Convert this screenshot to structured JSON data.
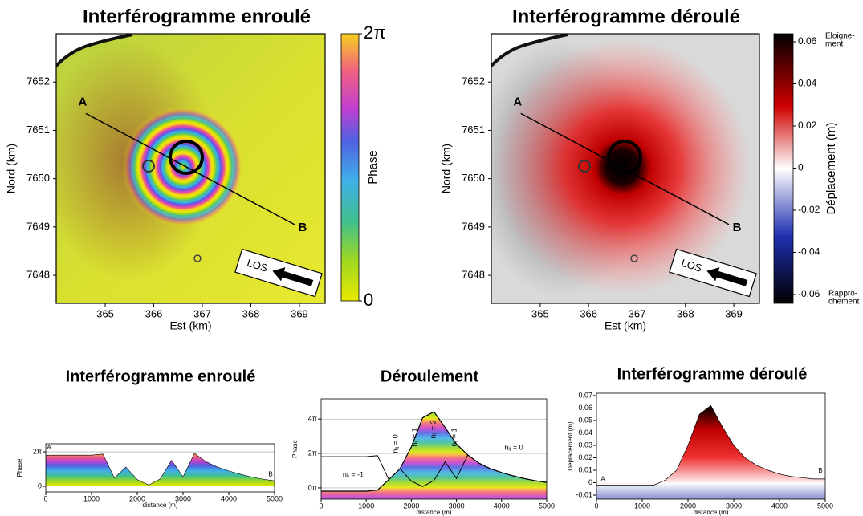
{
  "chart_data": [
    {
      "type": "map",
      "title": "Interférogramme enroulé",
      "xlabel": "Est (km)",
      "ylabel": "Nord (km)",
      "xlim": [
        363.99,
        369.53
      ],
      "ylim": [
        7647.42,
        7653.0
      ],
      "xticks": [
        365,
        366,
        367,
        368,
        369
      ],
      "yticks": [
        7648,
        7649,
        7650,
        7651,
        7652
      ],
      "profile": {
        "labels": [
          "A",
          "B"
        ],
        "x": [
          364.6,
          368.9
        ],
        "y": [
          7651.35,
          7649.05
        ]
      },
      "los": "LOS",
      "colorbar": {
        "label": "Phase",
        "ylim": [
          0,
          6.2832
        ],
        "yticks": [
          0,
          {
            "value": 6.2832,
            "label": "2π"
          }
        ]
      }
    },
    {
      "type": "map",
      "title": "Interférogramme déroulé",
      "xlabel": "Est (km)",
      "ylabel": "Nord (km)",
      "xlim": [
        363.99,
        369.53
      ],
      "ylim": [
        7647.42,
        7653.0
      ],
      "xticks": [
        365,
        366,
        367,
        368,
        369
      ],
      "yticks": [
        7648,
        7649,
        7650,
        7651,
        7652
      ],
      "profile": {
        "labels": [
          "A",
          "B"
        ],
        "x": [
          364.6,
          368.9
        ],
        "y": [
          7651.35,
          7649.05
        ]
      },
      "los": "LOS",
      "colorbar": {
        "label": "Déplacement (m)",
        "ylim": [
          -0.0642,
          0.0638
        ],
        "yticks": [
          -0.06,
          -0.04,
          -0.02,
          0,
          0.02,
          0.04,
          0.06
        ],
        "top_label": [
          "Eloigne-",
          "ment"
        ],
        "bottom_label": [
          "Rappro-",
          "chement"
        ]
      }
    },
    {
      "type": "wrapped",
      "title": "Interférogramme enroulé",
      "xlabel": "distance (m)",
      "ylabel": "Phase",
      "xlim": [
        0,
        5000
      ],
      "xticks": [
        0,
        1000,
        2000,
        3000,
        4000,
        5000
      ],
      "ylim": [
        -1.02,
        7.75
      ],
      "yticks": [
        0,
        {
          "value": 6.2832,
          "label": "2π"
        }
      ],
      "x": [
        0,
        250,
        500,
        750,
        1000,
        1250,
        1500,
        1750,
        2000,
        2250,
        2500,
        2750,
        3000,
        3250,
        3500,
        3750,
        4000,
        4250,
        4500,
        4750,
        5000
      ],
      "values": [
        5.68,
        5.68,
        5.68,
        5.68,
        5.68,
        5.88,
        1.5,
        3.5,
        1.22,
        0.23,
        1.33,
        4.72,
        1.72,
        6.0,
        4.5,
        3.5,
        2.8,
        2.2,
        1.7,
        1.3,
        1.0
      ],
      "endpoint_labels": [
        "A",
        "B"
      ]
    },
    {
      "type": "unwrap",
      "title": "Déroulement",
      "xlabel": "distance (m)",
      "ylabel": "Phase",
      "xlim": [
        0,
        5000
      ],
      "xticks": [
        0,
        1000,
        2000,
        3000,
        4000,
        5000
      ],
      "ylim": [
        -2.06,
        16.25
      ],
      "yticks": [
        {
          "value": 0,
          "label": "0π"
        },
        {
          "value": 6.2832,
          "label": "2π"
        },
        {
          "value": 12.5664,
          "label": "4π"
        }
      ],
      "x": [
        0,
        250,
        500,
        750,
        1000,
        1250,
        1500,
        1750,
        2000,
        2250,
        2500,
        2750,
        3000,
        3250,
        3500,
        3750,
        4000,
        4250,
        4500,
        4750,
        5000
      ],
      "series": [
        {
          "color": "#000000",
          "values": [
            -0.6,
            -0.6,
            -0.6,
            -0.6,
            -0.6,
            -0.4,
            1.5,
            3.5,
            7.5,
            12.8,
            13.9,
            11.0,
            8.0,
            6.0,
            4.5,
            3.5,
            2.8,
            2.2,
            1.7,
            1.3,
            1.0
          ]
        },
        {
          "color": "#000000",
          "values": [
            5.68,
            5.68,
            5.68,
            5.68,
            5.68,
            5.88,
            1.5,
            3.5,
            1.22,
            0.23,
            1.33,
            4.72,
            1.72,
            6.0,
            4.5,
            3.5,
            2.8,
            2.2,
            1.7,
            1.3,
            1.0
          ]
        }
      ],
      "annotations": [
        "nᵢⱼ = -1",
        "nᵢⱼ = 0",
        "nᵢⱼ = 1",
        "nᵢⱼ = 2",
        "nᵢⱼ = 1",
        "nᵢⱼ = 0"
      ]
    },
    {
      "type": "displacement",
      "title": "Interférogramme déroulé",
      "xlabel": "distance (m)",
      "ylabel": "Déplacement (m)",
      "xlim": [
        0,
        5000
      ],
      "xticks": [
        0,
        1000,
        2000,
        3000,
        4000,
        5000
      ],
      "ylim": [
        -0.0132,
        0.0719
      ],
      "yticks": [
        -0.01,
        0,
        0.01,
        0.02,
        0.03,
        0.04,
        0.05,
        0.06,
        0.07
      ],
      "x": [
        0,
        250,
        500,
        750,
        1000,
        1250,
        1500,
        1750,
        2000,
        2250,
        2500,
        2750,
        3000,
        3250,
        3500,
        3750,
        4000,
        4250,
        4500,
        4750,
        5000
      ],
      "values": [
        -0.002,
        -0.002,
        -0.002,
        -0.002,
        -0.002,
        -0.002,
        0.002,
        0.01,
        0.03,
        0.055,
        0.062,
        0.045,
        0.03,
        0.02,
        0.014,
        0.01,
        0.007,
        0.005,
        0.004,
        0.003,
        0.003
      ],
      "endpoint_labels": [
        "A",
        "B"
      ]
    }
  ]
}
